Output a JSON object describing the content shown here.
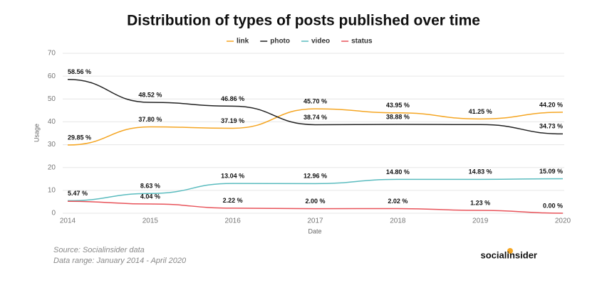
{
  "chart_data": {
    "type": "line",
    "title": "Distribution of types of posts published over time",
    "x_label": "Date",
    "y_label": "Usage",
    "categories": [
      "2014",
      "2015",
      "2016",
      "2017",
      "2018",
      "2019",
      "2020"
    ],
    "series": [
      {
        "name": "link",
        "color": "#f5a623",
        "values": [
          29.85,
          37.8,
          37.19,
          45.7,
          43.95,
          41.25,
          44.2
        ],
        "value_labels": [
          "29.85 %",
          "37.80 %",
          "37.19 %",
          "45.70 %",
          "43.95 %",
          "41.25 %",
          "44.20 %"
        ]
      },
      {
        "name": "photo",
        "color": "#222222",
        "values": [
          58.56,
          48.52,
          46.86,
          38.74,
          38.88,
          38.8,
          34.73
        ],
        "value_labels": [
          "58.56 %",
          "48.52 %",
          "46.86 %",
          "38.74 %",
          "38.88 %",
          null,
          "34.73 %"
        ]
      },
      {
        "name": "video",
        "color": "#5bbcbf",
        "values": [
          5.47,
          8.63,
          13.04,
          12.96,
          14.8,
          14.83,
          15.09
        ],
        "value_labels": [
          "5.47 %",
          "8.63 %",
          "13.04 %",
          "12.96 %",
          "14.80 %",
          "14.83 %",
          "15.09 %"
        ]
      },
      {
        "name": "status",
        "color": "#e8535a",
        "values": [
          5.2,
          4.04,
          2.22,
          2.0,
          2.02,
          1.23,
          0.0
        ],
        "value_labels": [
          null,
          "4.04 %",
          "2.22 %",
          "2.00 %",
          "2.02 %",
          "1.23 %",
          "0.00 %"
        ]
      }
    ],
    "ylim": [
      0,
      70
    ],
    "yticks": [
      0,
      10,
      20,
      30,
      40,
      50,
      60,
      70
    ],
    "grid": true,
    "legend": "top",
    "source": "Source: Socialinsider data",
    "data_range": "Data range: January 2014 - April 2020",
    "brand": "socialinsider"
  }
}
